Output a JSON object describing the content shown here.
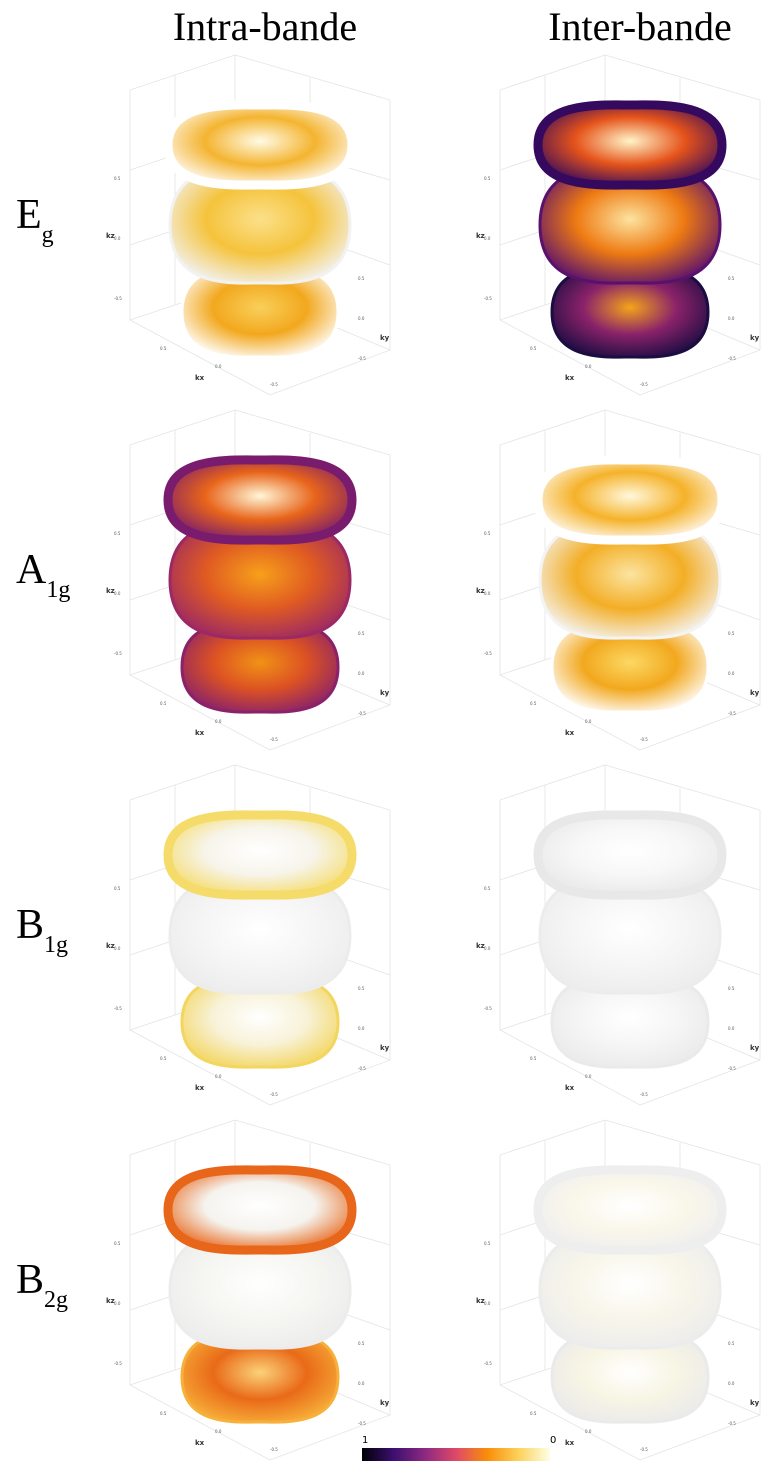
{
  "columns": [
    "Intra-bande",
    "Inter-bande"
  ],
  "rows": [
    {
      "label": "E",
      "subscript": "g"
    },
    {
      "label": "A",
      "subscript": "1g"
    },
    {
      "label": "B",
      "subscript": "1g"
    },
    {
      "label": "B",
      "subscript": "2g"
    }
  ],
  "axes": {
    "x": "kx",
    "y": "ky",
    "z": "kz",
    "ticks": [
      "0.5",
      "0.0",
      "-0.5"
    ]
  },
  "panels": [
    [
      {
        "top": [
          "#fffbe6",
          "#f4b430",
          "#ffffff"
        ],
        "middle": [
          "#fbe08a",
          "#f5c33c",
          "#f2f2f2"
        ],
        "bottom": [
          "#f9cf5a",
          "#f2a81e",
          "#ffffff"
        ]
      },
      {
        "top": [
          "#fff4c8",
          "#e5531a",
          "#35095e"
        ],
        "middle": [
          "#fde3a0",
          "#ee7a12",
          "#5a116e"
        ],
        "bottom": [
          "#f4a41a",
          "#8a226a",
          "#1b0c41"
        ]
      }
    ],
    [
      {
        "top": [
          "#fff7d8",
          "#e8641a",
          "#7a1c6d"
        ],
        "middle": [
          "#f7a01a",
          "#e05b22",
          "#9c2964"
        ],
        "bottom": [
          "#f19216",
          "#dc5223",
          "#8a226a"
        ]
      },
      {
        "top": [
          "#fff8dc",
          "#f5b22a",
          "#ffffff"
        ],
        "middle": [
          "#fbe4a0",
          "#f3ae26",
          "#f4f4f4"
        ],
        "bottom": [
          "#fcd864",
          "#f2a81e",
          "#ffffff"
        ]
      }
    ],
    [
      {
        "top": [
          "#ffffff",
          "#f7f4ea",
          "#f5dc6a"
        ],
        "middle": [
          "#ffffff",
          "#f6f6f6",
          "#ececec"
        ],
        "bottom": [
          "#ffffff",
          "#f8f2d8",
          "#f3d660"
        ]
      },
      {
        "top": [
          "#ffffff",
          "#f7f7f7",
          "#e8e8e8"
        ],
        "middle": [
          "#ffffff",
          "#f6f6f6",
          "#ececec"
        ],
        "bottom": [
          "#ffffff",
          "#f6f6f6",
          "#eaeaea"
        ]
      }
    ],
    [
      {
        "top": [
          "#ffffff",
          "#f5f3ee",
          "#e8661a"
        ],
        "middle": [
          "#ffffff",
          "#f6f6f2",
          "#ececec"
        ],
        "bottom": [
          "#fbd27a",
          "#e96a18",
          "#f7b03a"
        ]
      },
      {
        "top": [
          "#ffffff",
          "#faf7ea",
          "#eeeeee"
        ],
        "middle": [
          "#ffffff",
          "#f8f6ea",
          "#ececec"
        ],
        "bottom": [
          "#ffffff",
          "#f8f5e4",
          "#eaeaea"
        ]
      }
    ]
  ],
  "colorbar": {
    "left": "1",
    "right": "0",
    "colors": [
      "#000004",
      "#3b0f70",
      "#8c2981",
      "#de4968",
      "#f98e09",
      "#fcd25b",
      "#fcffe4"
    ]
  }
}
